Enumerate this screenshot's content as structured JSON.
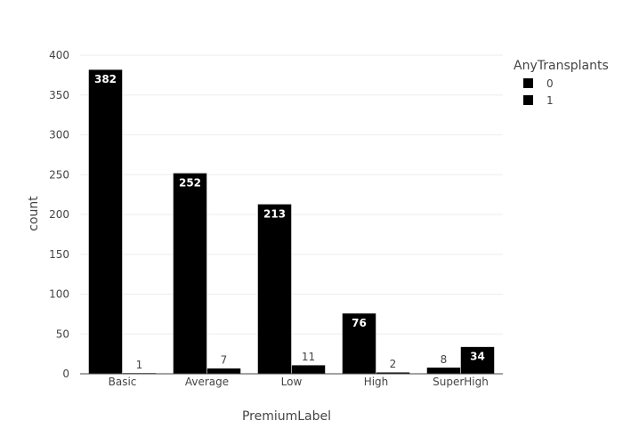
{
  "chart_data": {
    "type": "bar",
    "categories": [
      "Basic",
      "Average",
      "Low",
      "High",
      "SuperHigh"
    ],
    "series": [
      {
        "name": "0",
        "values": [
          382,
          252,
          213,
          76,
          8
        ]
      },
      {
        "name": "1",
        "values": [
          1,
          7,
          11,
          2,
          34
        ]
      }
    ],
    "xlabel": "PremiumLabel",
    "ylabel": "count",
    "ylim": [
      0,
      400
    ],
    "yticks": [
      0,
      50,
      100,
      150,
      200,
      250,
      300,
      350,
      400
    ],
    "legend_title": "AnyTransplants",
    "legend_position": "top-right",
    "grid": true,
    "bar_color": "#000000",
    "grid_color": "#eeeeee"
  }
}
